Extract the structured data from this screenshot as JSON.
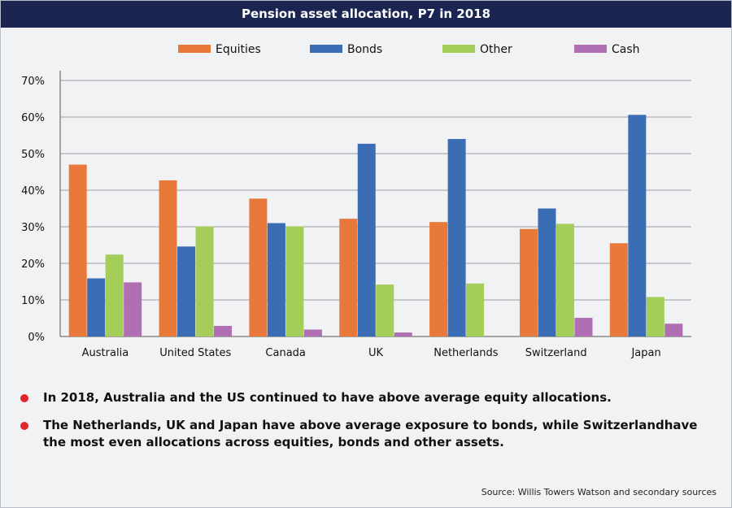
{
  "title": "Pension asset allocation, P7 in 2018",
  "chart_data": {
    "type": "bar",
    "categories": [
      "Australia",
      "United States",
      "Canada",
      "UK",
      "Netherlands",
      "Switzerland",
      "Japan"
    ],
    "series": [
      {
        "name": "Equities",
        "color": "#e8793a",
        "values": [
          47,
          42.7,
          37.7,
          32.2,
          31.3,
          29.4,
          25.5
        ]
      },
      {
        "name": "Bonds",
        "color": "#3b6db4",
        "values": [
          15.9,
          24.6,
          31,
          52.7,
          54,
          35,
          60.6
        ]
      },
      {
        "name": "Other",
        "color": "#a5cd5a",
        "values": [
          22.4,
          30.1,
          30.1,
          14.2,
          14.5,
          30.8,
          10.8
        ]
      },
      {
        "name": "Cash",
        "color": "#b06fb2",
        "values": [
          14.8,
          2.9,
          1.9,
          1.1,
          0,
          5.1,
          3.5
        ]
      }
    ],
    "ylim": [
      0,
      70
    ],
    "yticks": [
      0,
      10,
      20,
      30,
      40,
      50,
      60,
      70
    ],
    "ytick_labels": [
      "0%",
      "10%",
      "20%",
      "30%",
      "40%",
      "50%",
      "60%",
      "70%"
    ],
    "legend_position": "top",
    "grid": true
  },
  "notes": [
    "In 2018, Australia and the US continued to have above average equity allocations.",
    "The Netherlands, UK and Japan have above average exposure to bonds, while Switzerlandhave the most even allocations across equities, bonds and other assets."
  ],
  "source": "Source: Willis Towers Watson and secondary sources"
}
